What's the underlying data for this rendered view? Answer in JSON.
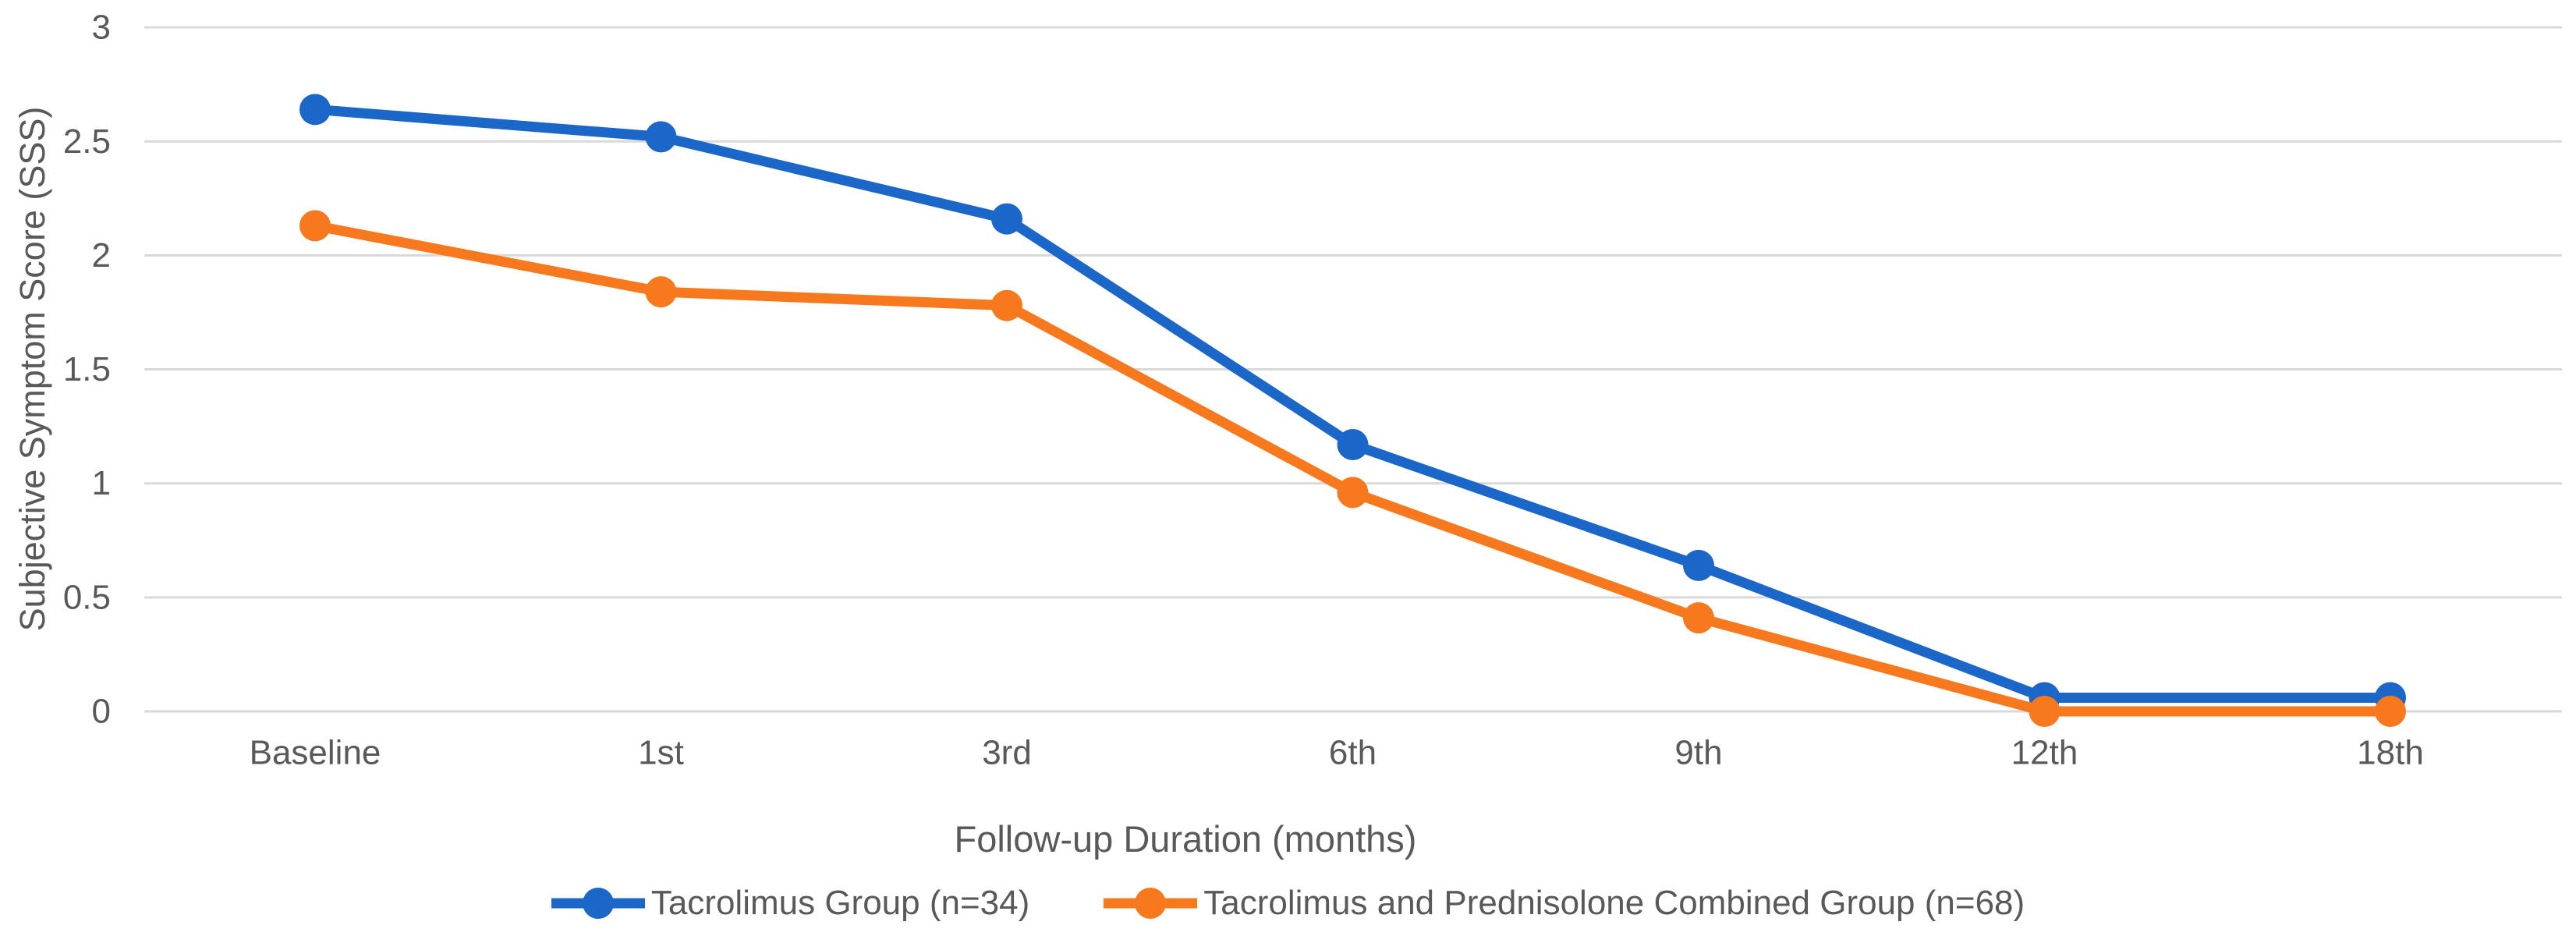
{
  "chart_data": {
    "type": "line",
    "title": "",
    "categories": [
      "Baseline",
      "1st",
      "3rd",
      "6th",
      "9th",
      "12th",
      "18th"
    ],
    "series": [
      {
        "name": "Tacrolimus Group (n=34)",
        "color": "#1B66C9",
        "marker": "circle",
        "values": [
          2.64,
          2.52,
          2.16,
          1.17,
          0.64,
          0.06,
          0.06
        ]
      },
      {
        "name": "Tacrolimus and Prednisolone Combined Group (n=68)",
        "color": "#F8791D",
        "marker": "circle",
        "values": [
          2.13,
          1.84,
          1.78,
          0.96,
          0.41,
          0.0,
          0.0
        ]
      }
    ],
    "xlabel": "Follow-up Duration (months)",
    "ylabel": "Subjective Symptom Score (SSS)",
    "ylim": [
      0,
      3
    ],
    "ytick_step": 0.5,
    "yticks": [
      "3",
      "2.5",
      "2",
      "1.5",
      "1",
      "0.5",
      "0"
    ],
    "grid": "horizontal-only",
    "legend_position": "bottom-center"
  },
  "colors": {
    "background": "#FFFFFF",
    "gridline": "#D9D9D9",
    "axis_text": "#595959"
  }
}
